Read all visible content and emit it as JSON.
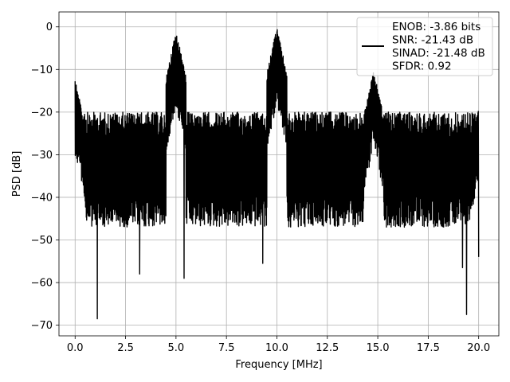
{
  "chart_data": {
    "type": "line",
    "title": "",
    "xlabel": "Frequency [MHz]",
    "ylabel": "PSD [dB]",
    "xlim": [
      -0.8,
      21.0
    ],
    "ylim": [
      -72.5,
      3.5
    ],
    "xticks": [
      0.0,
      2.5,
      5.0,
      7.5,
      10.0,
      12.5,
      15.0,
      17.5,
      20.0
    ],
    "xtick_labels": [
      "0.0",
      "2.5",
      "5.0",
      "7.5",
      "10.0",
      "12.5",
      "15.0",
      "17.5",
      "20.0"
    ],
    "yticks": [
      0,
      -10,
      -20,
      -30,
      -40,
      -50,
      -60,
      -70
    ],
    "ytick_labels": [
      "0",
      "−10",
      "−20",
      "−30",
      "−40",
      "−50",
      "−60",
      "−70"
    ],
    "grid": true,
    "legend_position": "top-right",
    "line_color": "#000000",
    "series": [
      {
        "legend_lines": [
          "ENOB: -3.86 bits",
          "SNR: -21.43 dB",
          "SINAD: -21.48 dB",
          "SFDR: 0.92"
        ],
        "noise_floor_band": [
          -45,
          -20
        ],
        "peaks": [
          {
            "x": 0.0,
            "y": -12
          },
          {
            "x": 5.0,
            "y": -0.8
          },
          {
            "x": 10.0,
            "y": 0.0
          },
          {
            "x": 14.8,
            "y": -10
          },
          {
            "x": 20.0,
            "y": -18
          }
        ],
        "minima": [
          {
            "x": 1.1,
            "y": -68.5
          },
          {
            "x": 3.2,
            "y": -58
          },
          {
            "x": 5.4,
            "y": -59
          },
          {
            "x": 9.3,
            "y": -55.5
          },
          {
            "x": 19.2,
            "y": -56.5
          },
          {
            "x": 19.4,
            "y": -67.5
          },
          {
            "x": 20.0,
            "y": -54
          }
        ]
      }
    ]
  }
}
